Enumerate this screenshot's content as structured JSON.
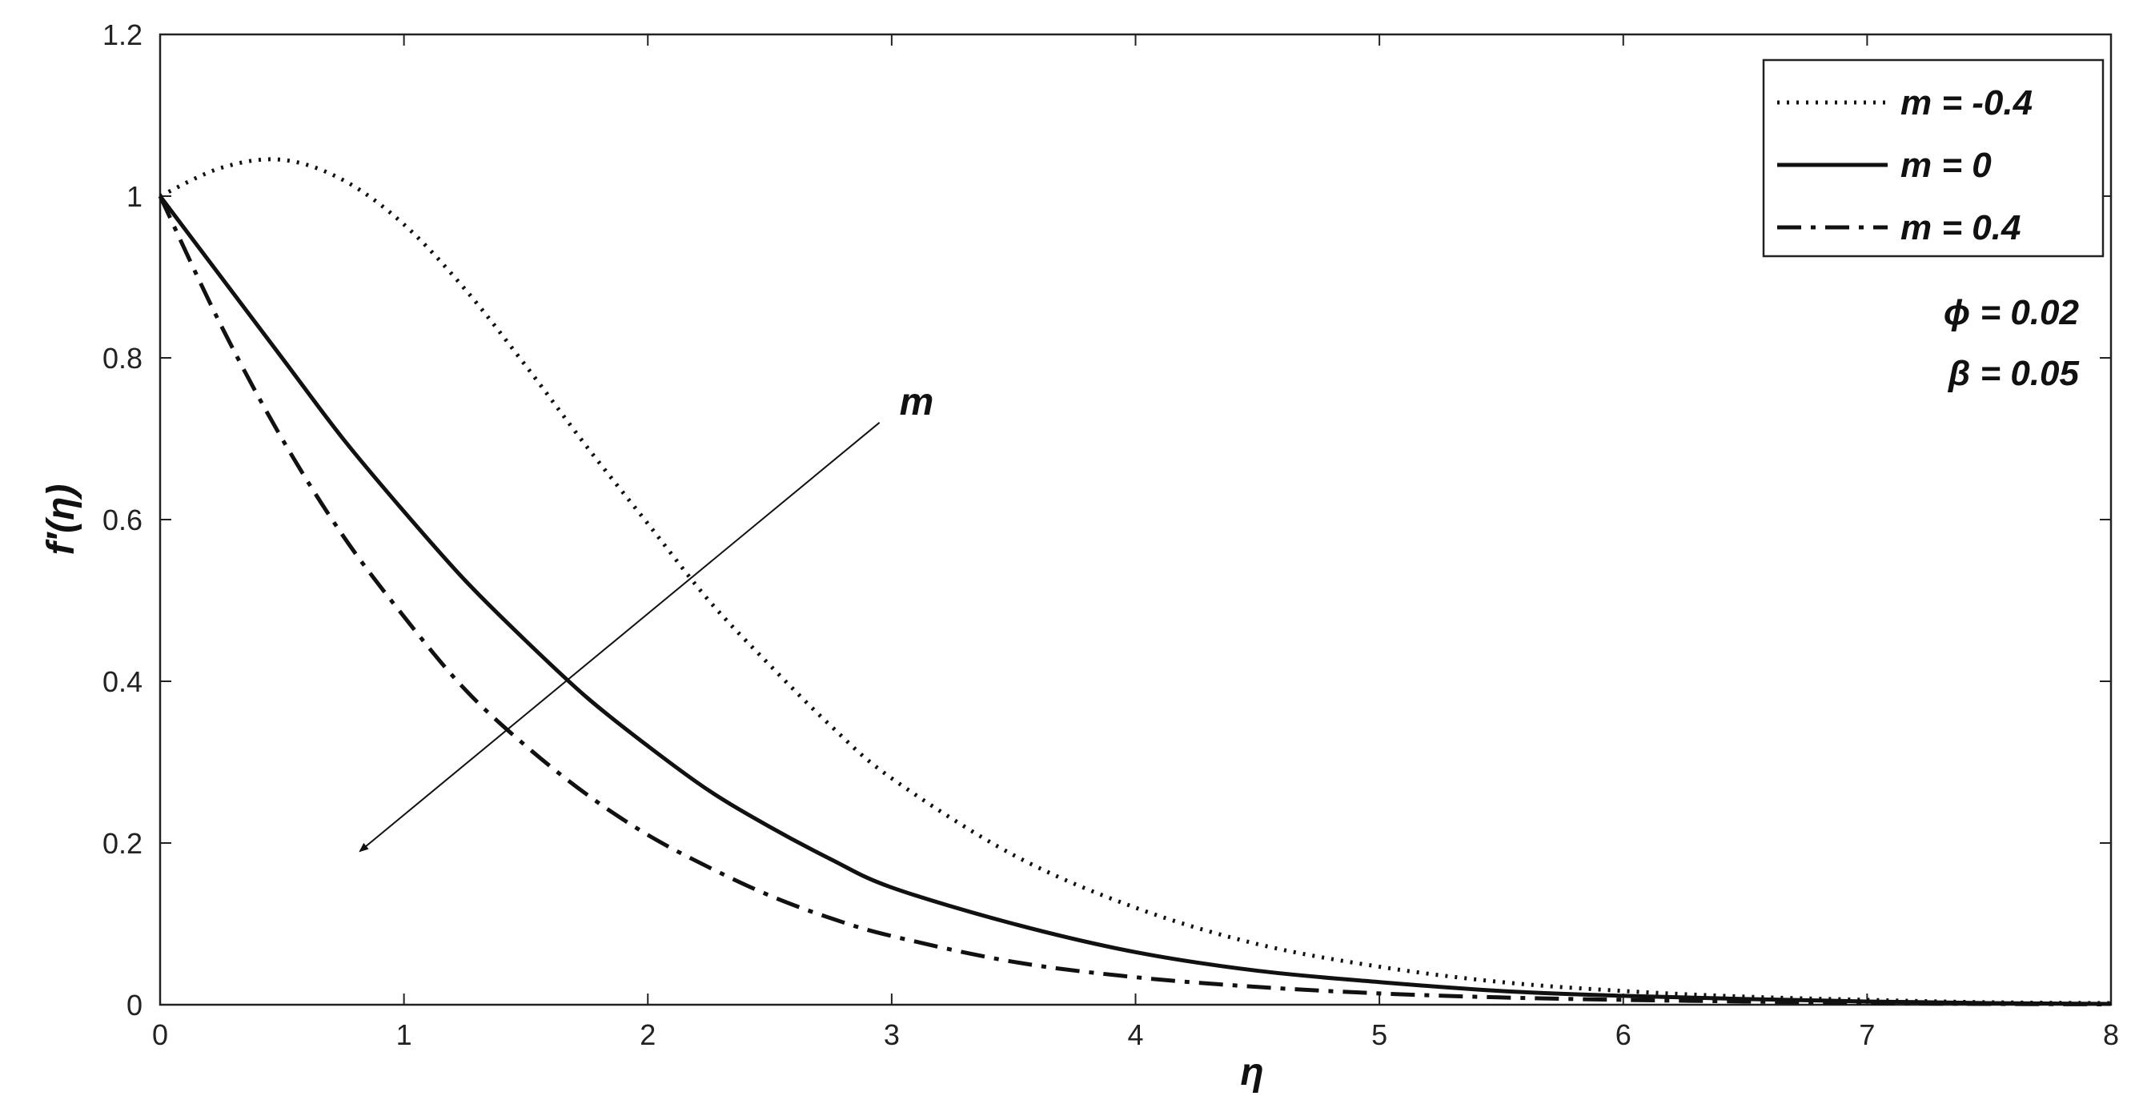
{
  "chart_data": {
    "type": "line",
    "title": "",
    "xlabel": "η",
    "ylabel": "f′(η)",
    "xlim": [
      0,
      8
    ],
    "ylim": [
      0,
      1.2
    ],
    "x_ticks": [
      "0",
      "1",
      "2",
      "3",
      "4",
      "5",
      "6",
      "7",
      "8"
    ],
    "y_ticks": [
      "0",
      "0.2",
      "0.4",
      "0.6",
      "0.8",
      "1",
      "1.2"
    ],
    "grid": false,
    "legend_position": "top-right",
    "x": [
      0,
      0.25,
      0.5,
      0.75,
      1,
      1.25,
      1.5,
      1.75,
      2,
      2.25,
      2.5,
      2.75,
      3,
      3.5,
      4,
      4.5,
      5,
      5.5,
      6,
      6.5,
      7,
      7.5,
      8
    ],
    "series": [
      {
        "name": "m = -0.4",
        "line_style": "dotted",
        "values": [
          1.0,
          1.035,
          1.045,
          1.02,
          0.965,
          0.885,
          0.79,
          0.69,
          0.595,
          0.5,
          0.42,
          0.345,
          0.28,
          0.185,
          0.12,
          0.075,
          0.047,
          0.028,
          0.017,
          0.01,
          0.006,
          0.003,
          0.002
        ]
      },
      {
        "name": "m = 0",
        "line_style": "solid",
        "values": [
          1.0,
          0.9,
          0.8,
          0.7,
          0.61,
          0.525,
          0.45,
          0.38,
          0.32,
          0.265,
          0.22,
          0.18,
          0.145,
          0.1,
          0.065,
          0.042,
          0.028,
          0.017,
          0.011,
          0.007,
          0.004,
          0.002,
          0.001
        ]
      },
      {
        "name": "m = 0.4",
        "line_style": "dashdot",
        "values": [
          1.0,
          0.84,
          0.7,
          0.58,
          0.48,
          0.39,
          0.32,
          0.26,
          0.21,
          0.17,
          0.135,
          0.107,
          0.085,
          0.053,
          0.034,
          0.022,
          0.014,
          0.009,
          0.006,
          0.004,
          0.002,
          0.001,
          0.0005
        ]
      }
    ],
    "params": [
      "ϕ = 0.02",
      "β = 0.05"
    ],
    "annotation": {
      "text": "m",
      "arrow_from": [
        2.95,
        0.72
      ],
      "arrow_to": [
        0.82,
        0.19
      ]
    }
  }
}
